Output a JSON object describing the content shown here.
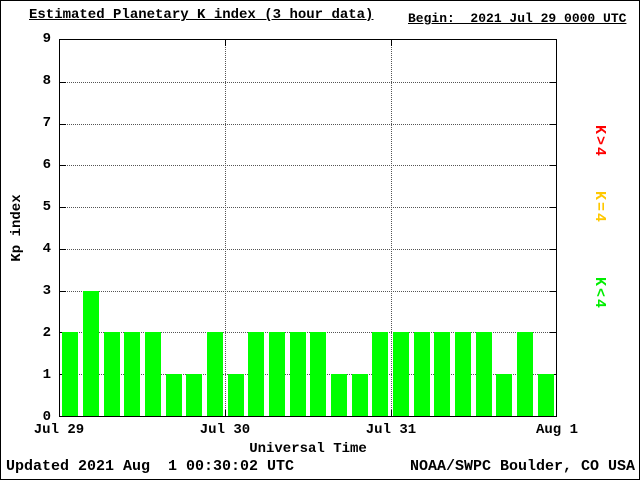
{
  "chart_data": {
    "type": "bar",
    "title": "Estimated Planetary K index (3 hour data)",
    "begin_label": "Begin:  2021 Jul 29 0000 UTC",
    "xlabel": "Universal Time",
    "ylabel": "Kp index",
    "ylim": [
      0,
      9
    ],
    "yticks": [
      "0",
      "1",
      "2",
      "3",
      "4",
      "5",
      "6",
      "7",
      "8",
      "9"
    ],
    "xtick_labels": [
      "Jul 29",
      "Jul 30",
      "Jul 31",
      "Aug 1"
    ],
    "bars_per_day": 8,
    "hours_per_bar": 3,
    "values": [
      2,
      3,
      2,
      2,
      2,
      1,
      1,
      2,
      1,
      2,
      2,
      2,
      2,
      1,
      1,
      2,
      2,
      2,
      2,
      2,
      2,
      1,
      2,
      1
    ],
    "bar_color": "#00FF00",
    "grid": true,
    "legend_position": "right",
    "legend": [
      {
        "label": "K>4",
        "color": "#FF0000"
      },
      {
        "label": "K=4",
        "color": "#FFC800"
      },
      {
        "label": "K<4",
        "color": "#00EE00"
      }
    ],
    "updated_label": "Updated 2021 Aug  1 00:30:02 UTC",
    "credit_label": "NOAA/SWPC Boulder, CO USA"
  }
}
